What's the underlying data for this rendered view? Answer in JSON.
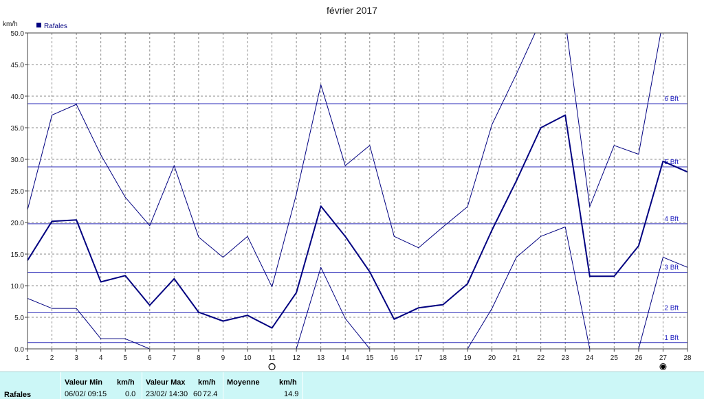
{
  "chart_data": {
    "type": "line",
    "title": "février 2017",
    "ylabel": "km/h",
    "ylim": [
      0,
      50
    ],
    "xlim": [
      1,
      28
    ],
    "x": [
      1,
      2,
      3,
      4,
      5,
      6,
      7,
      8,
      9,
      10,
      11,
      12,
      13,
      14,
      15,
      16,
      17,
      18,
      19,
      20,
      21,
      22,
      23,
      24,
      25,
      26,
      27,
      28
    ],
    "x_ticks": [
      "1",
      "2",
      "3",
      "4",
      "5",
      "6",
      "7",
      "8",
      "9",
      "10",
      "11",
      "12",
      "13",
      "14",
      "15",
      "16",
      "17",
      "18",
      "19",
      "20",
      "21",
      "22",
      "23",
      "24",
      "25",
      "26",
      "27",
      "28"
    ],
    "y_ticks": [
      "0.0",
      "5.0",
      "10.0",
      "15.0",
      "20.0",
      "25.0",
      "30.0",
      "35.0",
      "40.0",
      "45.0",
      "50.0"
    ],
    "grid": true,
    "legend": {
      "position": "top-left",
      "entries": [
        "Rafales"
      ]
    },
    "series": [
      {
        "name": "Rafales",
        "color": "#000080",
        "width": 2,
        "values": [
          14.0,
          20.2,
          20.4,
          10.6,
          11.6,
          6.9,
          11.1,
          5.8,
          4.4,
          5.3,
          3.3,
          8.9,
          22.6,
          17.8,
          12.2,
          4.7,
          6.5,
          7.0,
          10.3,
          18.8,
          26.6,
          35.0,
          37.0,
          11.5,
          11.5,
          16.3,
          29.7,
          28.0
        ]
      },
      {
        "color": "#000080",
        "width": 1,
        "values": [
          22.0,
          37.0,
          38.7,
          30.7,
          24.0,
          19.5,
          29.0,
          17.7,
          14.5,
          17.8,
          9.8,
          24.5,
          41.8,
          29.0,
          32.2,
          17.8,
          16.0,
          19.3,
          22.5,
          35.5,
          43.5,
          52.0,
          52.0,
          22.5,
          32.2,
          30.8,
          52.0,
          null
        ]
      },
      {
        "color": "#000080",
        "width": 1,
        "values": [
          8.0,
          6.4,
          6.4,
          1.6,
          1.6,
          0.0,
          null,
          null,
          null,
          null,
          null,
          0.0,
          12.9,
          4.8,
          0.0,
          null,
          null,
          null,
          0.0,
          6.4,
          14.5,
          17.8,
          19.3,
          0.0,
          null,
          0.0,
          14.5,
          12.9
        ]
      }
    ],
    "beaufort_lines": [
      {
        "label": "1 Bft",
        "value": 1.0
      },
      {
        "label": "2 Bft",
        "value": 5.7
      },
      {
        "label": "3 Bft",
        "value": 12.1
      },
      {
        "label": "4 Bft",
        "value": 19.8
      },
      {
        "label": "5 Bft",
        "value": 28.8
      },
      {
        "label": "6 Bft",
        "value": 38.8
      }
    ],
    "moon_markers": [
      {
        "day": 11,
        "phase": "full-moon"
      },
      {
        "day": 27,
        "phase": "new-moon"
      }
    ]
  },
  "stats": {
    "row_label": "Rafales",
    "min_header": "Valeur Min",
    "min_unit_header": "km/h",
    "min_time": "06/02/  09:15",
    "min_value": "0.0",
    "max_header": "Valeur Max",
    "max_unit_header": "km/h",
    "max_time": "23/02/  14:30",
    "max_extra": "60",
    "max_value": "72.4",
    "avg_header": "Moyenne",
    "avg_unit_header": "km/h",
    "avg_value": "14.9"
  }
}
